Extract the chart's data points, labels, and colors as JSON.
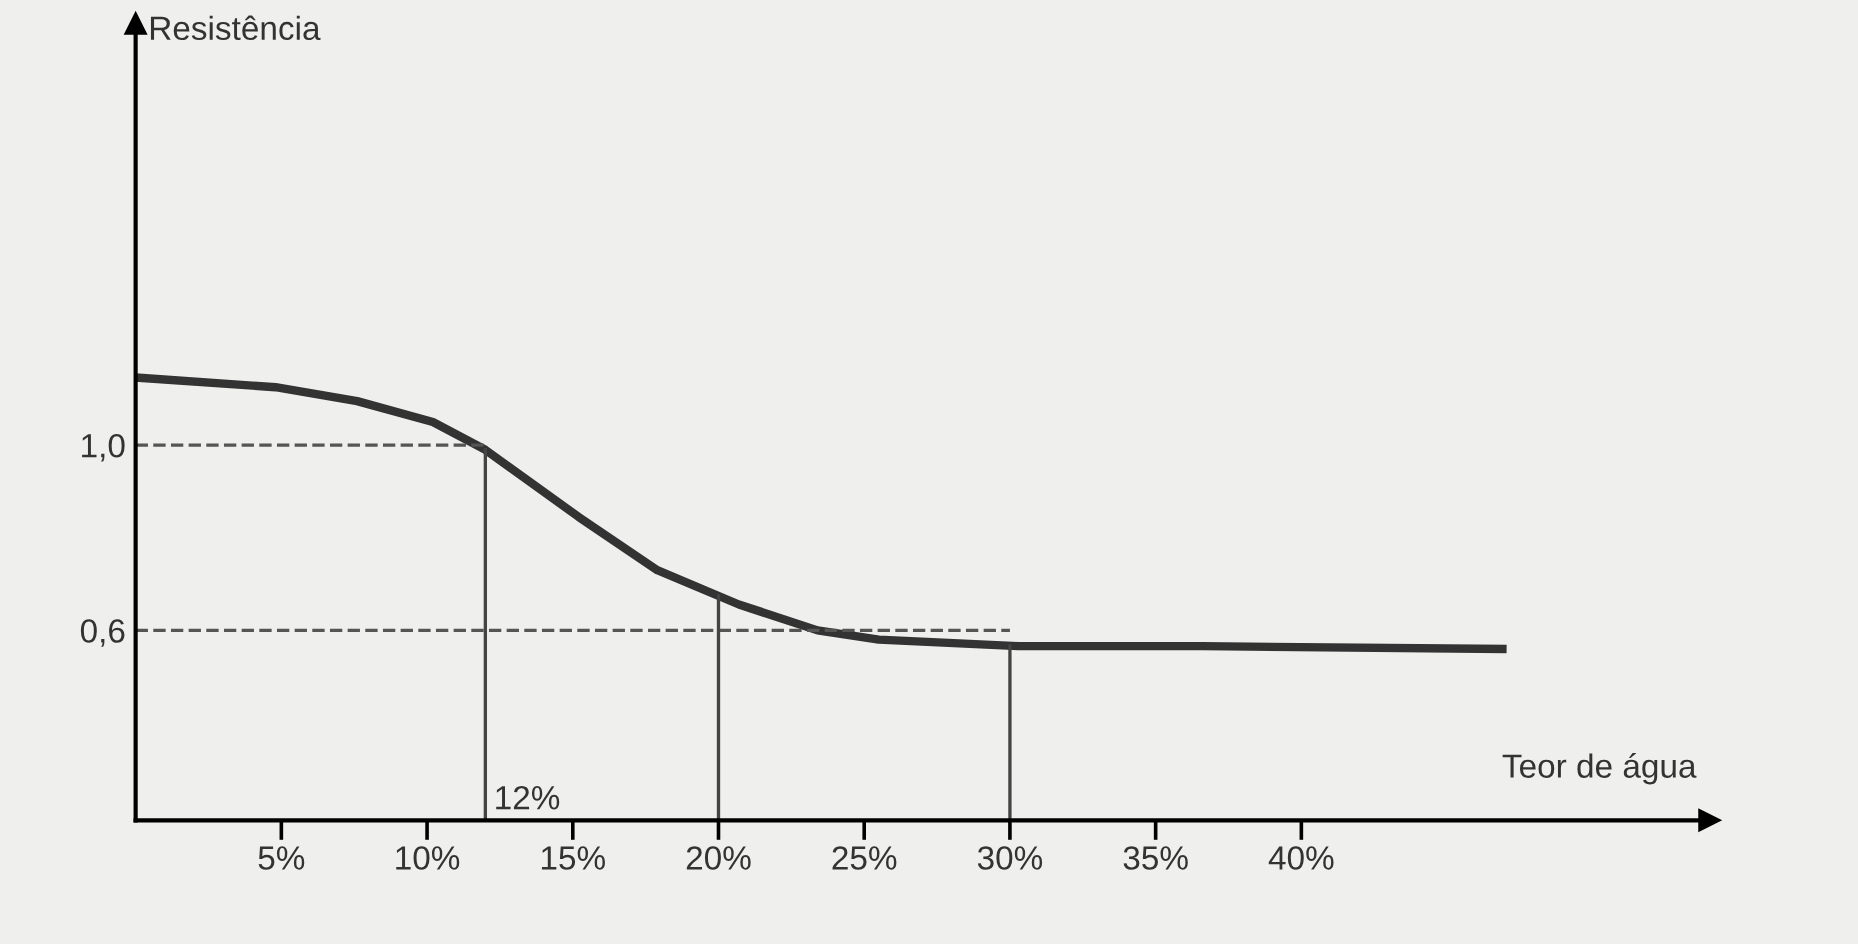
{
  "chart_data": {
    "type": "line",
    "xlabel": "Teor de água",
    "ylabel": "Resistência",
    "x": [
      0,
      4.8,
      7.6,
      10.2,
      12,
      15.2,
      17.9,
      20.7,
      23.4,
      25.5,
      30.3,
      36.6,
      46.9
    ],
    "series": [
      {
        "color": "#333333",
        "values": [
          1.146,
          1.125,
          1.095,
          1.05,
          0.99,
          0.845,
          0.73,
          0.656,
          0.6,
          0.58,
          0.566,
          0.566,
          0.56
        ]
      }
    ],
    "xlim": [
      0,
      54
    ],
    "ylim": [
      0.19,
      1.91
    ],
    "xticks": [
      {
        "value": 5,
        "label": "5%"
      },
      {
        "value": 10,
        "label": "10%"
      },
      {
        "value": 15,
        "label": "15%"
      },
      {
        "value": 20,
        "label": "20%"
      },
      {
        "value": 25,
        "label": "25%"
      },
      {
        "value": 30,
        "label": "30%"
      },
      {
        "value": 35,
        "label": "35%"
      },
      {
        "value": 40,
        "label": "40%"
      }
    ],
    "yticks": [
      {
        "value": 0.6,
        "label": "0,6"
      },
      {
        "value": 1.0,
        "label": "1,0"
      }
    ],
    "ref_lines": [
      {
        "axis": "y",
        "value": 1.0,
        "line_style": "dashed",
        "color": "#555555"
      },
      {
        "axis": "y",
        "value": 0.6,
        "line_style": "dashed",
        "color": "#555555"
      },
      {
        "axis": "x",
        "value": 12,
        "line_style": "solid",
        "color": "#444444"
      },
      {
        "axis": "x",
        "value": 20,
        "line_style": "solid",
        "color": "#444444"
      },
      {
        "axis": "x",
        "value": 30,
        "line_style": "solid",
        "color": "#444444"
      }
    ],
    "annotations": [
      {
        "text": "12%",
        "x": 12,
        "y": 0.19
      }
    ],
    "grid": false,
    "legend": false
  }
}
